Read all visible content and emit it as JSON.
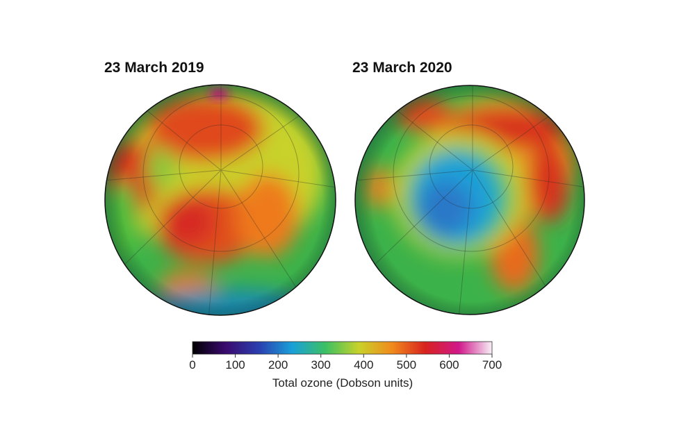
{
  "maps": [
    {
      "title": "23 March 2019"
    },
    {
      "title": "23 March 2020"
    }
  ],
  "colorbar": {
    "label": "Total ozone (Dobson units)",
    "lim": [
      0,
      700
    ],
    "ticks": [
      0,
      100,
      200,
      300,
      400,
      500,
      600,
      700
    ],
    "colors": [
      "#000000",
      "#3a0a6e",
      "#2a3fb0",
      "#1aa0d8",
      "#3cc063",
      "#c8d22a",
      "#f08a1c",
      "#d8221e",
      "#d0188a",
      "#f7f0f7"
    ]
  }
}
